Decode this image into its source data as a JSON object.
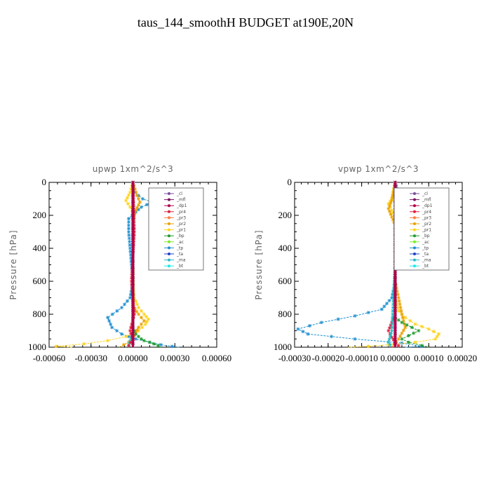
{
  "figure": {
    "title": "taus_144_smoothH  BUDGET at190E,20N"
  },
  "colors": {
    "_cl": "#7a4fa0",
    "_mfl": "#7a1060",
    "_dp1": "#b0004a",
    "_pr4": "#e0203a",
    "_pr3": "#ff7a3a",
    "_pr2": "#e8a000",
    "_pr1": "#ffd21a",
    "_bp": "#1e9a2e",
    "_ac": "#7cec2a",
    "_tp": "#1f8fd0",
    "_ta": "#2040c8",
    "_ma": "#2ab8c8",
    "_bt": "#20e8e8"
  },
  "chart_data": [
    {
      "type": "line",
      "title": "upwp   1xm^2/s^3",
      "ylabel": "Pressure [hPa]",
      "xlabel": "",
      "xlim": [
        -0.0006,
        0.0006
      ],
      "ylim": [
        1000,
        0
      ],
      "xticks": [
        "-0.00060",
        "-0.00030",
        "0.00000",
        "0.00030",
        "0.00060"
      ],
      "xtick_values": [
        -0.0006,
        -0.0003,
        0,
        0.0003,
        0.0006
      ],
      "yticks": [
        "0",
        "200",
        "400",
        "600",
        "800",
        "1000"
      ],
      "ytick_values": [
        0,
        200,
        400,
        600,
        800,
        1000
      ],
      "legend": [
        "_cl",
        "_mfl",
        "_dp1",
        "_pr4",
        "_pr3",
        "_pr2",
        "_pr1",
        "_bp",
        "_ac",
        "_tp",
        "_ta",
        "_ma",
        "_bt"
      ],
      "legend_position": "top-right",
      "series": [
        {
          "name": "_tp",
          "x": [
            0,
            1e-05,
            7e-05,
            0.00014,
            6e-05,
            2e-05,
            -3e-05,
            -3e-05,
            -2e-05,
            -1e-05,
            0,
            -2e-05,
            -8e-05,
            -0.00018,
            -0.00015,
            -8e-05,
            2e-05,
            0.00012,
            0.0002,
            0.00028,
            0.00033
          ],
          "y": [
            0,
            60,
            100,
            120,
            150,
            180,
            220,
            300,
            400,
            500,
            600,
            700,
            760,
            820,
            880,
            920,
            950,
            970,
            985,
            995,
            1000
          ]
        },
        {
          "name": "_pr1",
          "x": [
            0,
            -2e-05,
            -5e-05,
            -2e-05,
            1e-05,
            0,
            0,
            0,
            1e-05,
            4e-05,
            8e-05,
            0.00011,
            9e-05,
            4e-05,
            -5e-05,
            -0.00018,
            -0.00035,
            -0.00055,
            -0.00043
          ],
          "y": [
            0,
            60,
            110,
            150,
            190,
            250,
            400,
            600,
            700,
            760,
            800,
            830,
            860,
            900,
            935,
            960,
            980,
            995,
            1000
          ]
        },
        {
          "name": "_pr2",
          "x": [
            0,
            3e-05,
            5e-05,
            2e-05,
            0,
            0,
            0,
            4e-05,
            8e-05,
            4e-05,
            1e-05,
            -3e-05,
            -0.0001
          ],
          "y": [
            0,
            80,
            120,
            170,
            220,
            500,
            750,
            800,
            840,
            880,
            930,
            970,
            1000
          ]
        },
        {
          "name": "_bp",
          "x": [
            0,
            0,
            0,
            2e-05,
            6e-05,
            8e-05,
            0.00012,
            0.00015,
            0.00018,
            0.0002
          ],
          "y": [
            0,
            500,
            880,
            920,
            950,
            960,
            970,
            980,
            990,
            1000
          ]
        },
        {
          "name": "_ma",
          "x": [
            0,
            0,
            0,
            -2e-05,
            -3e-05,
            -1e-05
          ],
          "y": [
            0,
            500,
            900,
            960,
            990,
            1000
          ]
        },
        {
          "name": "_pr4",
          "x": [
            0,
            1e-05,
            -1e-05,
            1e-05,
            -2e-05,
            0,
            -3e-05,
            -2e-05
          ],
          "y": [
            0,
            300,
            600,
            800,
            900,
            950,
            990,
            1000
          ]
        },
        {
          "name": "_mfl",
          "x": [
            0,
            0,
            0,
            0,
            0,
            0,
            0,
            0,
            0,
            0,
            0
          ],
          "y": [
            0,
            100,
            200,
            300,
            400,
            500,
            600,
            700,
            800,
            900,
            1000
          ]
        },
        {
          "name": "_dp1",
          "x": [
            0,
            0,
            0,
            0,
            0,
            0,
            0,
            0,
            0,
            0,
            0
          ],
          "y": [
            0,
            100,
            200,
            300,
            400,
            500,
            600,
            700,
            800,
            900,
            1000
          ]
        }
      ]
    },
    {
      "type": "line",
      "title": "vpwp   1xm^2/s^3",
      "ylabel": "Pressure [hPa]",
      "xlabel": "",
      "xlim": [
        -0.0003,
        0.0002
      ],
      "ylim": [
        1000,
        0
      ],
      "xticks": [
        "-0.00030",
        "-0.00020",
        "-0.00010",
        "0.00000",
        "0.00010",
        "0.00020"
      ],
      "xtick_values": [
        -0.0003,
        -0.0002,
        -0.0001,
        0,
        0.0001,
        0.0002
      ],
      "yticks": [
        "0",
        "200",
        "400",
        "600",
        "800",
        "1000"
      ],
      "ytick_values": [
        0,
        200,
        400,
        600,
        800,
        1000
      ],
      "legend": [
        "_cl",
        "_mfl",
        "_dp1",
        "_pr4",
        "_pr3",
        "_pr2",
        "_pr1",
        "_bp",
        "_ac",
        "_tp",
        "_ta",
        "_ma",
        "_bt"
      ],
      "legend_position": "top-right",
      "series": [
        {
          "name": "_tp",
          "x": [
            0,
            1e-05,
            3e-05,
            4e-05,
            2e-05,
            1e-05,
            0,
            0,
            0,
            -1e-05,
            -4e-05,
            -0.00012,
            -0.00022,
            -0.00029,
            -0.00026,
            -0.00012,
            2e-05,
            8e-05,
            3e-05
          ],
          "y": [
            0,
            60,
            110,
            140,
            170,
            210,
            300,
            500,
            600,
            700,
            770,
            810,
            850,
            890,
            920,
            950,
            975,
            995,
            1000
          ]
        },
        {
          "name": "_pr1",
          "x": [
            0,
            -1e-05,
            -2e-05,
            -1e-05,
            0,
            0,
            0,
            1e-05,
            3e-05,
            6e-05,
            0.0001,
            0.00013,
            0.00012,
            6e-05,
            -2e-05,
            -8e-05,
            -0.00014
          ],
          "y": [
            0,
            100,
            130,
            170,
            220,
            500,
            700,
            780,
            820,
            860,
            890,
            920,
            950,
            970,
            985,
            995,
            1000
          ]
        },
        {
          "name": "_pr2",
          "x": [
            0,
            -1e-05,
            -2e-05,
            -1e-05,
            0,
            0,
            2e-05,
            3e-05,
            1e-05,
            -1e-05
          ],
          "y": [
            0,
            110,
            160,
            210,
            260,
            600,
            800,
            880,
            950,
            1000
          ]
        },
        {
          "name": "_bp",
          "x": [
            0,
            0,
            0,
            2e-05,
            5e-05,
            7e-05,
            4e-05,
            2e-05,
            4e-05,
            8e-05,
            0.0001
          ],
          "y": [
            0,
            500,
            820,
            850,
            880,
            900,
            930,
            950,
            970,
            990,
            1000
          ]
        },
        {
          "name": "_pr4",
          "x": [
            0,
            0,
            0,
            -1e-05,
            -2e-05,
            -1e-05,
            0,
            1e-05,
            -1e-05
          ],
          "y": [
            0,
            500,
            800,
            850,
            900,
            940,
            970,
            990,
            1000
          ]
        },
        {
          "name": "_ma",
          "x": [
            0,
            0,
            -1e-05,
            -2e-05,
            -1e-05
          ],
          "y": [
            0,
            500,
            900,
            970,
            1000
          ]
        },
        {
          "name": "_mfl",
          "x": [
            0,
            0,
            0,
            0,
            0,
            0,
            0,
            0,
            0,
            0,
            0
          ],
          "y": [
            0,
            100,
            200,
            300,
            400,
            500,
            600,
            700,
            800,
            900,
            1000
          ]
        },
        {
          "name": "_dp1",
          "x": [
            0,
            0,
            0,
            0,
            0,
            0,
            0,
            0,
            0,
            0,
            0
          ],
          "y": [
            0,
            100,
            200,
            300,
            400,
            500,
            600,
            700,
            800,
            900,
            1000
          ]
        }
      ]
    }
  ]
}
